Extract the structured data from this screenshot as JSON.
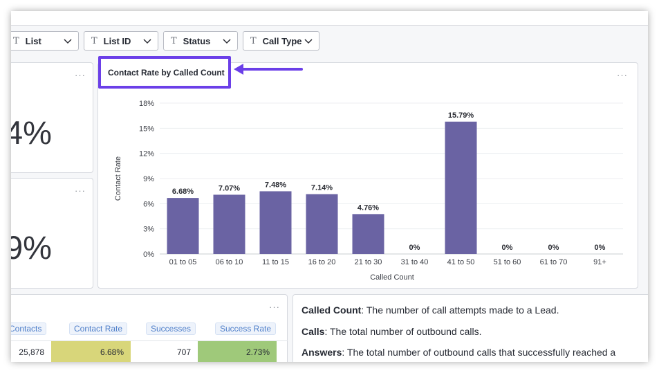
{
  "filters": [
    {
      "icon": "T",
      "label": "List"
    },
    {
      "icon": "T",
      "label": "List ID"
    },
    {
      "icon": "T",
      "label": "Status"
    },
    {
      "icon": "T",
      "label": "Call Type"
    }
  ],
  "kpis": [
    {
      "value": "4%"
    },
    {
      "value": "9%"
    }
  ],
  "menu_dots": "···",
  "chart": {
    "title": "Contact Rate by Called Count",
    "xlabel": "Called Count",
    "ylabel": "Contact Rate"
  },
  "chart_data": {
    "type": "bar",
    "title": "Contact Rate by Called Count",
    "xlabel": "Called Count",
    "ylabel": "Contact Rate",
    "categories": [
      "01 to 05",
      "06 to 10",
      "11 to 15",
      "16 to 20",
      "21 to 30",
      "31 to 40",
      "41 to 50",
      "51 to 60",
      "61 to 70",
      "91+"
    ],
    "values": [
      6.68,
      7.07,
      7.48,
      7.14,
      4.76,
      0,
      15.79,
      0,
      0,
      0
    ],
    "data_labels": [
      "6.68%",
      "7.07%",
      "7.48%",
      "7.14%",
      "4.76%",
      "0%",
      "15.79%",
      "0%",
      "0%",
      "0%"
    ],
    "yticks": [
      "0%",
      "3%",
      "6%",
      "9%",
      "12%",
      "15%",
      "18%"
    ],
    "ylim": [
      0,
      18
    ],
    "grid": true,
    "bar_color": "#6a63a3"
  },
  "table": {
    "headers": [
      "Contacts",
      "Contact Rate",
      "Successes",
      "Success Rate"
    ],
    "row": [
      "25,878",
      "6.68%",
      "707",
      "2.73%"
    ],
    "contact_rate_color": "#d8d67a",
    "success_rate_color": "#9fc97a"
  },
  "definitions": [
    {
      "term": "Called Count",
      "text": ": The number of call attempts made to a Lead."
    },
    {
      "term": "Calls",
      "text": ": The total number of outbound calls."
    },
    {
      "term": "Answers",
      "text": ": The total number of outbound calls that successfully reached a"
    }
  ],
  "accent_color": "#6b3fe8"
}
